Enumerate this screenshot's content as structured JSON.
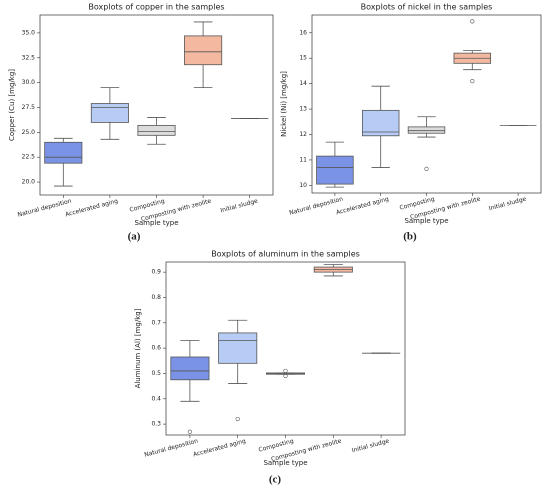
{
  "chart_data": [
    {
      "type": "box",
      "title": "Boxplots of copper in the samples",
      "x_label": "Sample type",
      "y_label": "Copper (Cu) [mg/kg]",
      "panel_label": "(a)",
      "categories": [
        "Natural deposition",
        "Accelerated aging",
        "Composting",
        "Composting with zeolite",
        "Initial sludge"
      ],
      "colors": [
        "#7b93e6",
        "#b7ccf5",
        "#dcdcdc",
        "#f2b9a0",
        "#e8b8a0"
      ],
      "boxes": [
        {
          "low": 19.6,
          "q1": 21.9,
          "median": 22.5,
          "q3": 24.0,
          "high": 24.4,
          "outliers": []
        },
        {
          "low": 24.3,
          "q1": 26.0,
          "median": 27.5,
          "q3": 27.9,
          "high": 29.5,
          "outliers": []
        },
        {
          "low": 23.8,
          "q1": 24.7,
          "median": 25.1,
          "q3": 25.7,
          "high": 26.5,
          "outliers": []
        },
        {
          "low": 29.5,
          "q1": 31.8,
          "median": 33.1,
          "q3": 34.7,
          "high": 36.1,
          "outliers": []
        },
        {
          "low": 26.4,
          "q1": 26.4,
          "median": 26.4,
          "q3": 26.4,
          "high": 26.4,
          "outliers": []
        }
      ],
      "ylim": [
        18.7,
        36.8
      ],
      "yticks": [
        {
          "value": 20,
          "label": "20.0"
        },
        22.5,
        {
          "value": 25,
          "label": "25.0"
        },
        27.5,
        {
          "value": 30,
          "label": "30.0"
        },
        32.5,
        {
          "value": 35,
          "label": "35.0"
        }
      ]
    },
    {
      "type": "box",
      "title": "Boxplots of nickel in the samples",
      "x_label": "Sample type",
      "y_label": "Nickel (Ni) [mg/kg]",
      "panel_label": "(b)",
      "categories": [
        "Natural deposition",
        "Accelerated aging",
        "Composting",
        "Composting with zeolite",
        "Initial sludge"
      ],
      "colors": [
        "#7b93e6",
        "#b7ccf5",
        "#dcdcdc",
        "#f2b9a0",
        "#e8b8a0"
      ],
      "boxes": [
        {
          "low": 9.93,
          "q1": 10.05,
          "median": 10.7,
          "q3": 11.15,
          "high": 11.7,
          "outliers": []
        },
        {
          "low": 10.7,
          "q1": 11.95,
          "median": 12.1,
          "q3": 12.95,
          "high": 13.9,
          "outliers": []
        },
        {
          "low": 11.9,
          "q1": 12.05,
          "median": 12.15,
          "q3": 12.3,
          "high": 12.7,
          "outliers": [
            10.65
          ]
        },
        {
          "low": 14.55,
          "q1": 14.8,
          "median": 15.0,
          "q3": 15.2,
          "high": 15.3,
          "outliers": [
            16.45,
            14.1
          ]
        },
        {
          "low": 12.35,
          "q1": 12.35,
          "median": 12.35,
          "q3": 12.35,
          "high": 12.35,
          "outliers": []
        }
      ],
      "ylim": [
        9.7,
        16.7
      ],
      "yticks": [
        10,
        11,
        12,
        13,
        14,
        15,
        16
      ]
    },
    {
      "type": "box",
      "title": "Boxplots of aluminum in the samples",
      "x_label": "Sample type",
      "y_label": "Aluminum (Al) [mg/kg]",
      "panel_label": "(c)",
      "categories": [
        "Natural deposition",
        "Accelerated aging",
        "Composting",
        "Composting with zeolite",
        "Initial sludge"
      ],
      "colors": [
        "#7b93e6",
        "#b7ccf5",
        "#dcdcdc",
        "#f2b9a0",
        "#e8b8a0"
      ],
      "boxes": [
        {
          "low": 0.39,
          "q1": 0.475,
          "median": 0.51,
          "q3": 0.565,
          "high": 0.63,
          "outliers": [
            0.27
          ]
        },
        {
          "low": 0.46,
          "q1": 0.54,
          "median": 0.63,
          "q3": 0.66,
          "high": 0.71,
          "outliers": [
            0.32
          ]
        },
        {
          "low": 0.497,
          "q1": 0.497,
          "median": 0.5,
          "q3": 0.502,
          "high": 0.502,
          "outliers": [
            0.51,
            0.49
          ]
        },
        {
          "low": 0.885,
          "q1": 0.9,
          "median": 0.91,
          "q3": 0.92,
          "high": 0.93,
          "outliers": []
        },
        {
          "low": 0.58,
          "q1": 0.58,
          "median": 0.58,
          "q3": 0.58,
          "high": 0.58,
          "outliers": []
        }
      ],
      "ylim": [
        0.257,
        0.94
      ],
      "yticks": [
        0.3,
        0.4,
        0.5,
        0.6,
        0.7,
        0.8,
        0.9
      ]
    }
  ]
}
